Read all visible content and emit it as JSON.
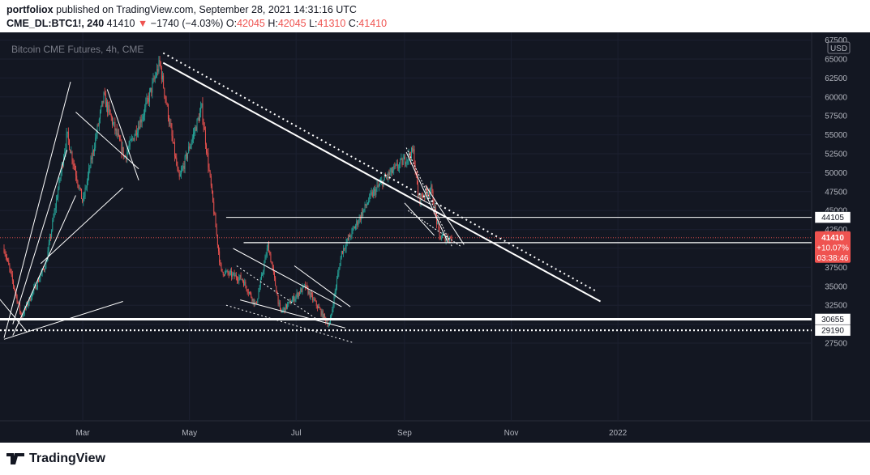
{
  "header": {
    "publisher": "portfoliox",
    "published_text": "published on TradingView.com, September 28, 2021 14:31:16 UTC",
    "symbol": "CME_DL:BTC1!, 240",
    "last": "41410",
    "change": "−1740 (−4.03%)",
    "o_label": "O:",
    "o_value": "42045",
    "h_label": "H:",
    "h_value": "42045",
    "l_label": "L:",
    "l_value": "41310",
    "c_label": "C:",
    "c_value": "41410"
  },
  "watermark": "Bitcoin CME Futures, 4h, CME",
  "currency_badge": "USD",
  "price_tag": {
    "price": "41410",
    "pct": "+10.07%",
    "timer": "03:38:46"
  },
  "level_labels": [
    "44105",
    "40765",
    "30655",
    "29190"
  ],
  "footer": {
    "brand": "TradingView"
  },
  "colors": {
    "background": "#131722",
    "up": "#26a69a",
    "down": "#ef5350",
    "lines": "#ffffff"
  },
  "chart_data": {
    "type": "candlestick",
    "title": "Bitcoin CME Futures, 4h, CME",
    "y_ticks": [
      27500,
      30000,
      32500,
      35000,
      37500,
      40000,
      42500,
      45000,
      47500,
      50000,
      52500,
      55000,
      57500,
      60000,
      62500,
      65000,
      67500
    ],
    "x_ticks": [
      "Mar",
      "May",
      "Jul",
      "Sep",
      "Nov",
      "2022"
    ],
    "ylim": [
      25000,
      68000
    ],
    "price_path": [
      [
        "2021-01-15",
        40000
      ],
      [
        "2021-01-25",
        31000
      ],
      [
        "2021-02-08",
        38000
      ],
      [
        "2021-02-20",
        55000
      ],
      [
        "2021-03-01",
        46000
      ],
      [
        "2021-03-13",
        60000
      ],
      [
        "2021-03-25",
        52000
      ],
      [
        "2021-04-05",
        58000
      ],
      [
        "2021-04-14",
        64500
      ],
      [
        "2021-04-25",
        49000
      ],
      [
        "2021-05-08",
        58500
      ],
      [
        "2021-05-19",
        37000
      ],
      [
        "2021-05-31",
        36000
      ],
      [
        "2021-06-08",
        32500
      ],
      [
        "2021-06-15",
        40500
      ],
      [
        "2021-06-22",
        31500
      ],
      [
        "2021-07-06",
        35000
      ],
      [
        "2021-07-20",
        29800
      ],
      [
        "2021-07-27",
        39500
      ],
      [
        "2021-08-13",
        47000
      ],
      [
        "2021-08-22",
        49500
      ],
      [
        "2021-09-06",
        52800
      ],
      [
        "2021-09-09",
        46500
      ],
      [
        "2021-09-16",
        48000
      ],
      [
        "2021-09-21",
        41500
      ],
      [
        "2021-09-28",
        41410
      ]
    ],
    "horizontal_levels": [
      44105,
      40765,
      30655,
      29190
    ],
    "current_price": 41410
  }
}
